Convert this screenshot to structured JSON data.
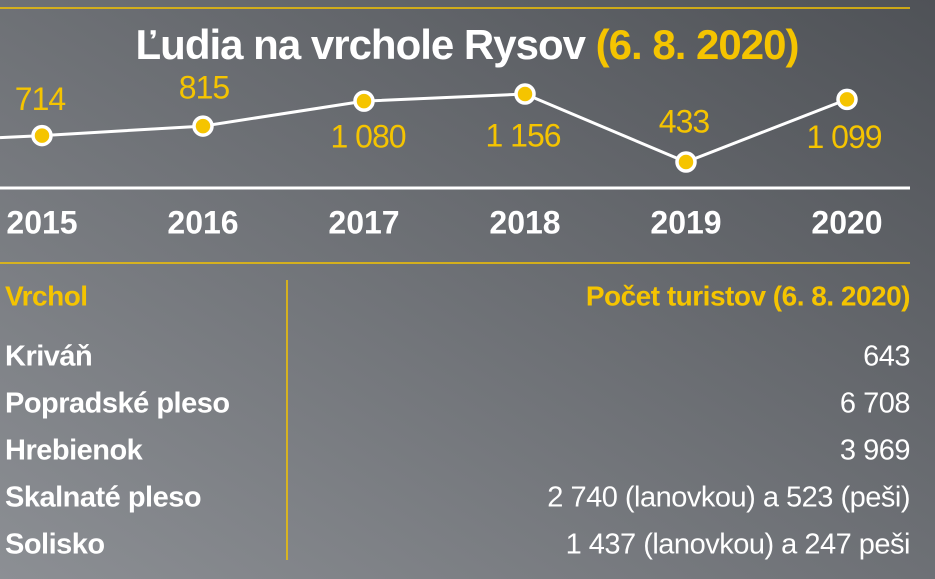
{
  "chart_data": {
    "type": "line",
    "title": "Ľudia na vrchole Rysov",
    "subtitle": "(6. 8. 2020)",
    "categories": [
      "2015",
      "2016",
      "2017",
      "2018",
      "2019",
      "2020"
    ],
    "values": [
      714,
      815,
      1080,
      1156,
      433,
      1099
    ],
    "value_labels": [
      "714",
      "815",
      "1 080",
      "1 156",
      "433",
      "1 099"
    ],
    "color": "#f5c400"
  },
  "table": {
    "columns": [
      "Vrchol",
      "Počet turistov (6. 8. 2020)"
    ],
    "rows": [
      [
        "Kriváň",
        "643"
      ],
      [
        "Popradské pleso",
        "6 708"
      ],
      [
        "Hrebienok",
        "3 969"
      ],
      [
        "Skalnaté pleso",
        "2 740 (lanovkou) a 523 (peši)"
      ],
      [
        "Solisko",
        "1 437 (lanovkou) a 247 peši"
      ]
    ]
  }
}
